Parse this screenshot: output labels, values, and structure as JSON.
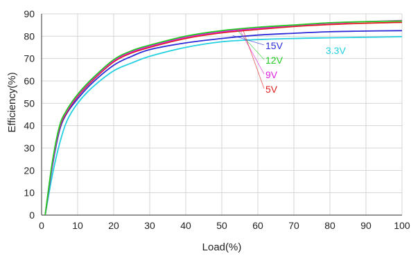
{
  "chart_data": {
    "type": "line",
    "title": "",
    "xlabel": "Load(%)",
    "ylabel": "Efficiency(%)",
    "xlim": [
      0,
      100
    ],
    "ylim": [
      0,
      90
    ],
    "xticks": [
      0,
      10,
      20,
      30,
      40,
      50,
      60,
      70,
      80,
      90,
      100
    ],
    "yticks": [
      0,
      10,
      20,
      30,
      40,
      50,
      60,
      70,
      80,
      90
    ],
    "grid": true,
    "legend": "inline labels near curves, upper-right",
    "series": [
      {
        "name": "15V",
        "color": "#2a2ad8",
        "points": [
          [
            1,
            0
          ],
          [
            3,
            22
          ],
          [
            5,
            38
          ],
          [
            7,
            45.5
          ],
          [
            10,
            52
          ],
          [
            14,
            59
          ],
          [
            20,
            67
          ],
          [
            25,
            71
          ],
          [
            30,
            74
          ],
          [
            40,
            77
          ],
          [
            50,
            79
          ],
          [
            60,
            80.5
          ],
          [
            70,
            81.3
          ],
          [
            80,
            82
          ],
          [
            90,
            82.3
          ],
          [
            100,
            82.5
          ]
        ]
      },
      {
        "name": "12V",
        "color": "#22cc22",
        "points": [
          [
            1,
            0
          ],
          [
            3,
            24
          ],
          [
            5,
            40
          ],
          [
            7,
            47
          ],
          [
            10,
            54
          ],
          [
            14,
            61
          ],
          [
            20,
            69.5
          ],
          [
            25,
            73.5
          ],
          [
            30,
            76
          ],
          [
            40,
            80
          ],
          [
            50,
            82.5
          ],
          [
            60,
            84
          ],
          [
            70,
            85
          ],
          [
            80,
            86
          ],
          [
            90,
            86.5
          ],
          [
            100,
            86.8
          ]
        ]
      },
      {
        "name": "9V",
        "color": "#e020e0",
        "points": [
          [
            1,
            0
          ],
          [
            3,
            23
          ],
          [
            5,
            39.5
          ],
          [
            7,
            46.5
          ],
          [
            10,
            53.5
          ],
          [
            14,
            60.5
          ],
          [
            20,
            69
          ],
          [
            25,
            73
          ],
          [
            30,
            75.5
          ],
          [
            40,
            79.5
          ],
          [
            50,
            82
          ],
          [
            60,
            83.5
          ],
          [
            70,
            84.8
          ],
          [
            80,
            85.8
          ],
          [
            90,
            86.5
          ],
          [
            100,
            87
          ]
        ]
      },
      {
        "name": "5V",
        "color": "#e02020",
        "points": [
          [
            1,
            0
          ],
          [
            3,
            23
          ],
          [
            5,
            39
          ],
          [
            7,
            46
          ],
          [
            10,
            53
          ],
          [
            14,
            60
          ],
          [
            20,
            68.5
          ],
          [
            25,
            72.5
          ],
          [
            30,
            75
          ],
          [
            40,
            79
          ],
          [
            50,
            81.5
          ],
          [
            60,
            83
          ],
          [
            70,
            84.3
          ],
          [
            80,
            85.2
          ],
          [
            90,
            85.8
          ],
          [
            100,
            86.2
          ]
        ]
      },
      {
        "name": "3.3V",
        "color": "#22d0e0",
        "points": [
          [
            1,
            0
          ],
          [
            3,
            18
          ],
          [
            5,
            32
          ],
          [
            7,
            42
          ],
          [
            10,
            50
          ],
          [
            14,
            57
          ],
          [
            20,
            64.5
          ],
          [
            25,
            68
          ],
          [
            30,
            71
          ],
          [
            40,
            75
          ],
          [
            50,
            77.5
          ],
          [
            60,
            78.5
          ],
          [
            70,
            79
          ],
          [
            80,
            79.3
          ],
          [
            90,
            79.5
          ],
          [
            100,
            79.8
          ]
        ]
      }
    ]
  }
}
